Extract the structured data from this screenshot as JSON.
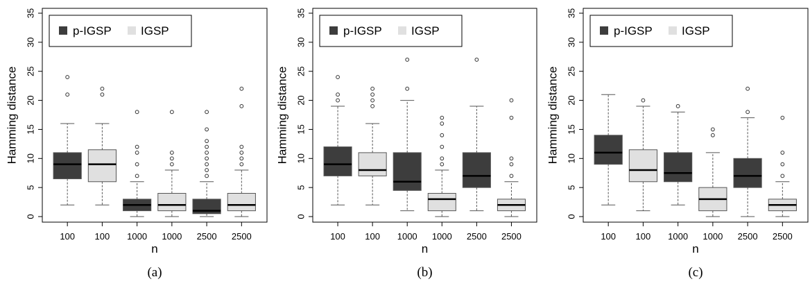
{
  "colors": {
    "p_igsp": "#3d3d3d",
    "igsp": "#e0e0e0",
    "box_outline": "#555555",
    "whisker": "#555555"
  },
  "chart_data": [
    {
      "type": "boxplot",
      "caption": "(a)",
      "xlabel": "n",
      "ylabel": "Hamming distance",
      "ylim": [
        0,
        35
      ],
      "yticks": [
        0,
        5,
        10,
        15,
        20,
        25,
        30,
        35
      ],
      "legend": {
        "position": "top-left",
        "entries": [
          {
            "label": "p-IGSP",
            "color": "#3d3d3d"
          },
          {
            "label": "IGSP",
            "color": "#e0e0e0"
          }
        ]
      },
      "categories": [
        "100",
        "100",
        "1000",
        "1000",
        "2500",
        "2500"
      ],
      "boxes": [
        {
          "label": "100",
          "series": "p-IGSP",
          "whisker_low": 2,
          "q1": 6.5,
          "median": 9,
          "q3": 11,
          "whisker_high": 16,
          "outliers": [
            21,
            24
          ]
        },
        {
          "label": "100",
          "series": "IGSP",
          "whisker_low": 2,
          "q1": 6,
          "median": 9,
          "q3": 11.5,
          "whisker_high": 16,
          "outliers": [
            21,
            22
          ]
        },
        {
          "label": "1000",
          "series": "p-IGSP",
          "whisker_low": 0,
          "q1": 1,
          "median": 2,
          "q3": 3,
          "whisker_high": 6,
          "outliers": [
            7,
            9,
            11,
            12,
            18
          ]
        },
        {
          "label": "1000",
          "series": "IGSP",
          "whisker_low": 0,
          "q1": 1,
          "median": 2,
          "q3": 4,
          "whisker_high": 8,
          "outliers": [
            9,
            10,
            11,
            18
          ]
        },
        {
          "label": "2500",
          "series": "p-IGSP",
          "whisker_low": 0,
          "q1": 0.5,
          "median": 1,
          "q3": 3,
          "whisker_high": 6,
          "outliers": [
            7,
            8,
            9,
            10,
            11,
            12,
            13,
            15,
            18
          ]
        },
        {
          "label": "2500",
          "series": "IGSP",
          "whisker_low": 0,
          "q1": 1,
          "median": 2,
          "q3": 4,
          "whisker_high": 8,
          "outliers": [
            9,
            10,
            11,
            12,
            19,
            22
          ]
        }
      ]
    },
    {
      "type": "boxplot",
      "caption": "(b)",
      "xlabel": "n",
      "ylabel": "Hamming distance",
      "ylim": [
        0,
        35
      ],
      "yticks": [
        0,
        5,
        10,
        15,
        20,
        25,
        30,
        35
      ],
      "legend": {
        "position": "top-left",
        "entries": [
          {
            "label": "p-IGSP",
            "color": "#3d3d3d"
          },
          {
            "label": "IGSP",
            "color": "#e0e0e0"
          }
        ]
      },
      "categories": [
        "100",
        "100",
        "1000",
        "1000",
        "2500",
        "2500"
      ],
      "boxes": [
        {
          "label": "100",
          "series": "p-IGSP",
          "whisker_low": 2,
          "q1": 7,
          "median": 9,
          "q3": 12,
          "whisker_high": 19,
          "outliers": [
            20,
            21,
            24
          ]
        },
        {
          "label": "100",
          "series": "IGSP",
          "whisker_low": 2,
          "q1": 7,
          "median": 8,
          "q3": 11,
          "whisker_high": 16,
          "outliers": [
            19,
            20,
            21,
            22
          ]
        },
        {
          "label": "1000",
          "series": "p-IGSP",
          "whisker_low": 1,
          "q1": 4.5,
          "median": 6,
          "q3": 11,
          "whisker_high": 20,
          "outliers": [
            22,
            27
          ]
        },
        {
          "label": "1000",
          "series": "IGSP",
          "whisker_low": 0,
          "q1": 1,
          "median": 3,
          "q3": 4,
          "whisker_high": 8,
          "outliers": [
            9,
            10,
            12,
            14,
            16,
            17
          ]
        },
        {
          "label": "2500",
          "series": "p-IGSP",
          "whisker_low": 1,
          "q1": 5,
          "median": 7,
          "q3": 11,
          "whisker_high": 19,
          "outliers": [
            27
          ]
        },
        {
          "label": "2500",
          "series": "IGSP",
          "whisker_low": 0,
          "q1": 1,
          "median": 2,
          "q3": 3,
          "whisker_high": 6,
          "outliers": [
            7,
            9,
            10,
            17,
            20
          ]
        }
      ]
    },
    {
      "type": "boxplot",
      "caption": "(c)",
      "xlabel": "n",
      "ylabel": "Hamming distance",
      "ylim": [
        0,
        35
      ],
      "yticks": [
        0,
        5,
        10,
        15,
        20,
        25,
        30,
        35
      ],
      "legend": {
        "position": "top-left",
        "entries": [
          {
            "label": "p-IGSP",
            "color": "#3d3d3d"
          },
          {
            "label": "IGSP",
            "color": "#e0e0e0"
          }
        ]
      },
      "categories": [
        "100",
        "100",
        "1000",
        "1000",
        "2500",
        "2500"
      ],
      "boxes": [
        {
          "label": "100",
          "series": "p-IGSP",
          "whisker_low": 2,
          "q1": 9,
          "median": 11,
          "q3": 14,
          "whisker_high": 21,
          "outliers": []
        },
        {
          "label": "100",
          "series": "IGSP",
          "whisker_low": 1,
          "q1": 6,
          "median": 8,
          "q3": 11.5,
          "whisker_high": 19,
          "outliers": [
            20
          ]
        },
        {
          "label": "1000",
          "series": "p-IGSP",
          "whisker_low": 2,
          "q1": 6,
          "median": 7.5,
          "q3": 11,
          "whisker_high": 18,
          "outliers": [
            19
          ]
        },
        {
          "label": "1000",
          "series": "IGSP",
          "whisker_low": 0,
          "q1": 1,
          "median": 3,
          "q3": 5,
          "whisker_high": 11,
          "outliers": [
            14,
            15
          ]
        },
        {
          "label": "2500",
          "series": "p-IGSP",
          "whisker_low": 0,
          "q1": 5,
          "median": 7,
          "q3": 10,
          "whisker_high": 17,
          "outliers": [
            18,
            22
          ]
        },
        {
          "label": "2500",
          "series": "IGSP",
          "whisker_low": 0,
          "q1": 1,
          "median": 2,
          "q3": 3,
          "whisker_high": 6,
          "outliers": [
            7,
            9,
            11,
            17
          ]
        }
      ]
    }
  ]
}
